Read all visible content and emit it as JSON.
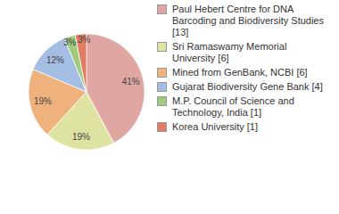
{
  "chart_data": {
    "type": "pie",
    "categories": [
      "Paul Hebert Centre for DNA Barcoding and Biodiversity Studies [13]",
      "Sri Ramaswamy Memorial University [6]",
      "Mined from GenBank, NCBI [6]",
      "Gujarat Biodiversity Gene Bank [4]",
      "M.P. Council of Science and Technology, India [1]",
      "Korea University [1]"
    ],
    "values": [
      41,
      19,
      19,
      12,
      3,
      3
    ],
    "value_labels": [
      "41%",
      "19%",
      "19%",
      "12%",
      "3%",
      "3%"
    ],
    "colors": [
      "#e0a6a2",
      "#dfe3a2",
      "#efb27c",
      "#a3bee2",
      "#9fca80",
      "#e27c62"
    ],
    "data_labels": true,
    "legend": "right"
  }
}
